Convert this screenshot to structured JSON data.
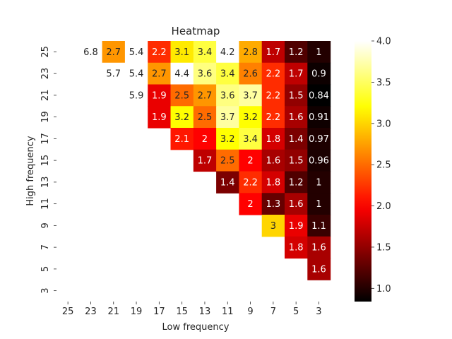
{
  "chart_data": {
    "type": "heatmap",
    "title": "Heatmap",
    "xlabel": "Low frequency",
    "ylabel": "High frequency",
    "x_categories": [
      "25",
      "23",
      "21",
      "19",
      "17",
      "15",
      "13",
      "11",
      "9",
      "7",
      "5",
      "3"
    ],
    "y_categories": [
      "25",
      "23",
      "21",
      "19",
      "17",
      "15",
      "13",
      "11",
      "9",
      "7",
      "5",
      "3"
    ],
    "values": [
      [
        null,
        6.8,
        2.7,
        5.4,
        2.2,
        3.1,
        3.4,
        4.2,
        2.8,
        1.7,
        1.2,
        1
      ],
      [
        null,
        null,
        5.7,
        5.4,
        2.7,
        4.4,
        3.6,
        3.4,
        2.6,
        2.2,
        1.7,
        0.9
      ],
      [
        null,
        null,
        null,
        5.9,
        1.9,
        2.5,
        2.7,
        3.6,
        3.7,
        2.2,
        1.5,
        0.84
      ],
      [
        null,
        null,
        null,
        null,
        1.9,
        3.2,
        2.5,
        3.7,
        3.2,
        2.2,
        1.6,
        0.91
      ],
      [
        null,
        null,
        null,
        null,
        null,
        2.1,
        2,
        3.2,
        3.4,
        1.8,
        1.4,
        0.97
      ],
      [
        null,
        null,
        null,
        null,
        null,
        null,
        1.7,
        2.5,
        2,
        1.6,
        1.5,
        0.96
      ],
      [
        null,
        null,
        null,
        null,
        null,
        null,
        null,
        1.4,
        2.2,
        1.8,
        1.2,
        1
      ],
      [
        null,
        null,
        null,
        null,
        null,
        null,
        null,
        null,
        2,
        1.3,
        1.6,
        1
      ],
      [
        null,
        null,
        null,
        null,
        null,
        null,
        null,
        null,
        null,
        3,
        1.9,
        1.1
      ],
      [
        null,
        null,
        null,
        null,
        null,
        null,
        null,
        null,
        null,
        null,
        1.8,
        1.6
      ],
      [
        null,
        null,
        null,
        null,
        null,
        null,
        null,
        null,
        null,
        null,
        null,
        1.6
      ],
      [
        null,
        null,
        null,
        null,
        null,
        null,
        null,
        null,
        null,
        null,
        null,
        null
      ]
    ],
    "colormap": "hot",
    "vmin": 0.84,
    "vmax": 4.0,
    "colorbar_ticks": [
      "1.0",
      "1.5",
      "2.0",
      "2.5",
      "3.0",
      "3.5",
      "4.0"
    ],
    "annotated": true,
    "grid": false,
    "legend": "colorbar-right"
  }
}
